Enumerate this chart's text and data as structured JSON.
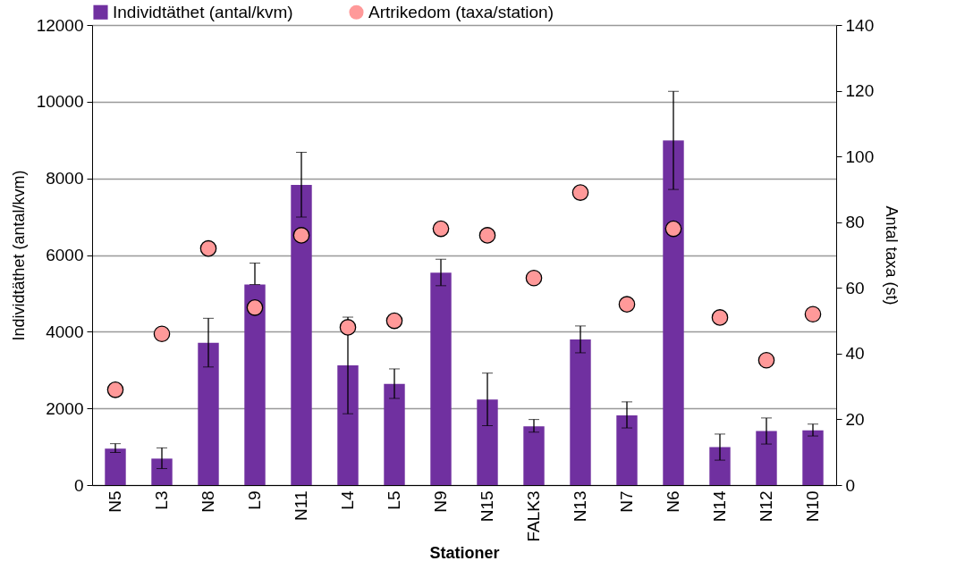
{
  "chart_data": {
    "type": "bar",
    "xlabel": "Stationer",
    "ylabel": "Individtäthet (antal/kvm)",
    "y2label": "Antal taxa (st)",
    "categories": [
      "N5",
      "L3",
      "N8",
      "L9",
      "N11",
      "L4",
      "L5",
      "N9",
      "N15",
      "FALK3",
      "N13",
      "N7",
      "N6",
      "N14",
      "N12",
      "N10"
    ],
    "series": [
      {
        "name": "Individtäthet (antal/kvm)",
        "color": "#7030a0",
        "values": [
          950,
          690,
          3710,
          5230,
          7830,
          3120,
          2640,
          5540,
          2230,
          1530,
          3800,
          1820,
          8990,
          990,
          1410,
          1430
        ],
        "errors": [
          [
            850,
            1080
          ],
          [
            430,
            970
          ],
          [
            3080,
            4350
          ],
          [
            5230,
            5790
          ],
          [
            6990,
            8680
          ],
          [
            1860,
            4380
          ],
          [
            2260,
            3030
          ],
          [
            5200,
            5890
          ],
          [
            1550,
            2920
          ],
          [
            1380,
            1710
          ],
          [
            3450,
            4150
          ],
          [
            1490,
            2170
          ],
          [
            7710,
            10270
          ],
          [
            650,
            1330
          ],
          [
            1070,
            1750
          ],
          [
            1280,
            1590
          ]
        ]
      },
      {
        "name": "Artrikedom (taxa/station)",
        "type": "scatter",
        "axis": "y2",
        "color": "#ff9999",
        "values": [
          29,
          46,
          72,
          54,
          76,
          48,
          50,
          78,
          76,
          63,
          89,
          55,
          78,
          51,
          38,
          52
        ]
      }
    ],
    "ylim": [
      0,
      12000
    ],
    "yticks": [
      0,
      2000,
      4000,
      6000,
      8000,
      10000,
      12000
    ],
    "y2lim": [
      0,
      140
    ],
    "y2ticks": [
      0,
      20,
      40,
      60,
      80,
      100,
      120,
      140
    ],
    "grid": "y",
    "legend": "top",
    "marker": "circle"
  }
}
